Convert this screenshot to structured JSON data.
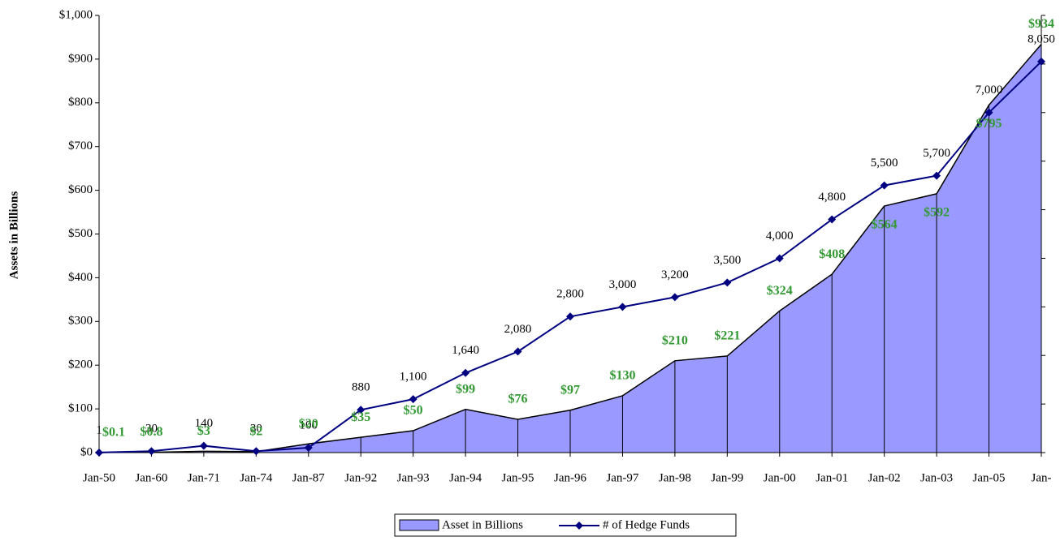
{
  "chart_data": {
    "type": "area-line",
    "y_axis_label": "Assets in Billions",
    "categories": [
      "Jan-50",
      "Jan-60",
      "Jan-71",
      "Jan-74",
      "Jan-87",
      "Jan-92",
      "Jan-93",
      "Jan-94",
      "Jan-95",
      "Jan-96",
      "Jan-97",
      "Jan-98",
      "Jan-99",
      "Jan-00",
      "Jan-01",
      "Jan-02",
      "Jan-03",
      "Jan-05",
      "Jan-"
    ],
    "series": [
      {
        "name": "Asset in Billions",
        "color": "#9999ff",
        "values": [
          0.1,
          0.8,
          3,
          2,
          20,
          35,
          50,
          99,
          76,
          97,
          130,
          210,
          221,
          324,
          408,
          564,
          592,
          795,
          934
        ],
        "value_labels": [
          "$0.1",
          "$0.8",
          "$3",
          "$2",
          "$20",
          "$35",
          "$50",
          "$99",
          "$76",
          "$97",
          "$130",
          "$210",
          "$221",
          "$324",
          "$408",
          "$564",
          "$592",
          "$795",
          "$934"
        ]
      },
      {
        "name": "# of Hedge Funds",
        "color": "#000080",
        "axis": "y2",
        "values": [
          1,
          30,
          140,
          30,
          100,
          880,
          1100,
          1640,
          2080,
          2800,
          3000,
          3200,
          3500,
          4000,
          4800,
          5500,
          5700,
          7000,
          8050
        ],
        "value_labels": [
          "1",
          "30",
          "140",
          "30",
          "100",
          "880",
          "1,100",
          "1,640",
          "2,080",
          "2,800",
          "3,000",
          "3,200",
          "3,500",
          "4,000",
          "4,800",
          "5,500",
          "5,700",
          "7,000",
          "8,050"
        ]
      }
    ],
    "ylim": [
      0,
      1000
    ],
    "yticks": [
      {
        "value": 0,
        "label": "$0"
      },
      {
        "value": 100,
        "label": "$100"
      },
      {
        "value": 200,
        "label": "$200"
      },
      {
        "value": 300,
        "label": "$300"
      },
      {
        "value": 400,
        "label": "$400"
      },
      {
        "value": 500,
        "label": "$500"
      },
      {
        "value": 600,
        "label": "$600"
      },
      {
        "value": 700,
        "label": "$700"
      },
      {
        "value": 800,
        "label": "$800"
      },
      {
        "value": 900,
        "label": "$900"
      },
      {
        "value": 1000,
        "label": "$1,000"
      }
    ],
    "y2lim": [
      0,
      9000
    ],
    "y2ticks": [
      0,
      1000,
      2000,
      3000,
      4000,
      5000,
      6000,
      7000,
      8000,
      9000
    ],
    "legend": "bottom"
  }
}
